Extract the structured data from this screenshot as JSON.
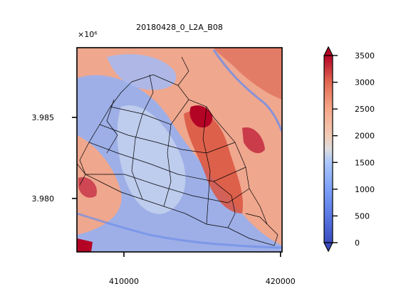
{
  "chart_data": {
    "type": "heatmap",
    "title": "20180428_0_L2A_B08",
    "xlabel": "",
    "ylabel": "",
    "y_offset_label": "×10⁶",
    "xlim": [
      407000,
      420100
    ],
    "ylim": [
      3976700,
      3989300
    ],
    "x_ticks": [
      410000,
      420000
    ],
    "x_tick_labels": [
      "410000",
      "420000"
    ],
    "y_ticks": [
      3980000,
      3985000
    ],
    "y_tick_labels": [
      "3.980",
      "3.985"
    ],
    "grid": false,
    "colormap": "coolwarm",
    "colorbar": {
      "min": 0,
      "max": 3500,
      "extend": "both",
      "ticks": [
        0,
        500,
        1000,
        1500,
        2000,
        2500,
        3000,
        3500
      ],
      "tick_labels": [
        "0",
        "500",
        "1000",
        "1500",
        "2000",
        "2500",
        "3000",
        "3500"
      ],
      "colors": [
        "#3b4cc0",
        "#6788ee",
        "#9abbff",
        "#c9d7f0",
        "#edd1c2",
        "#f7a889",
        "#e26952",
        "#b40426"
      ]
    },
    "overlay": "administrative boundary polygons (black outlines)"
  }
}
